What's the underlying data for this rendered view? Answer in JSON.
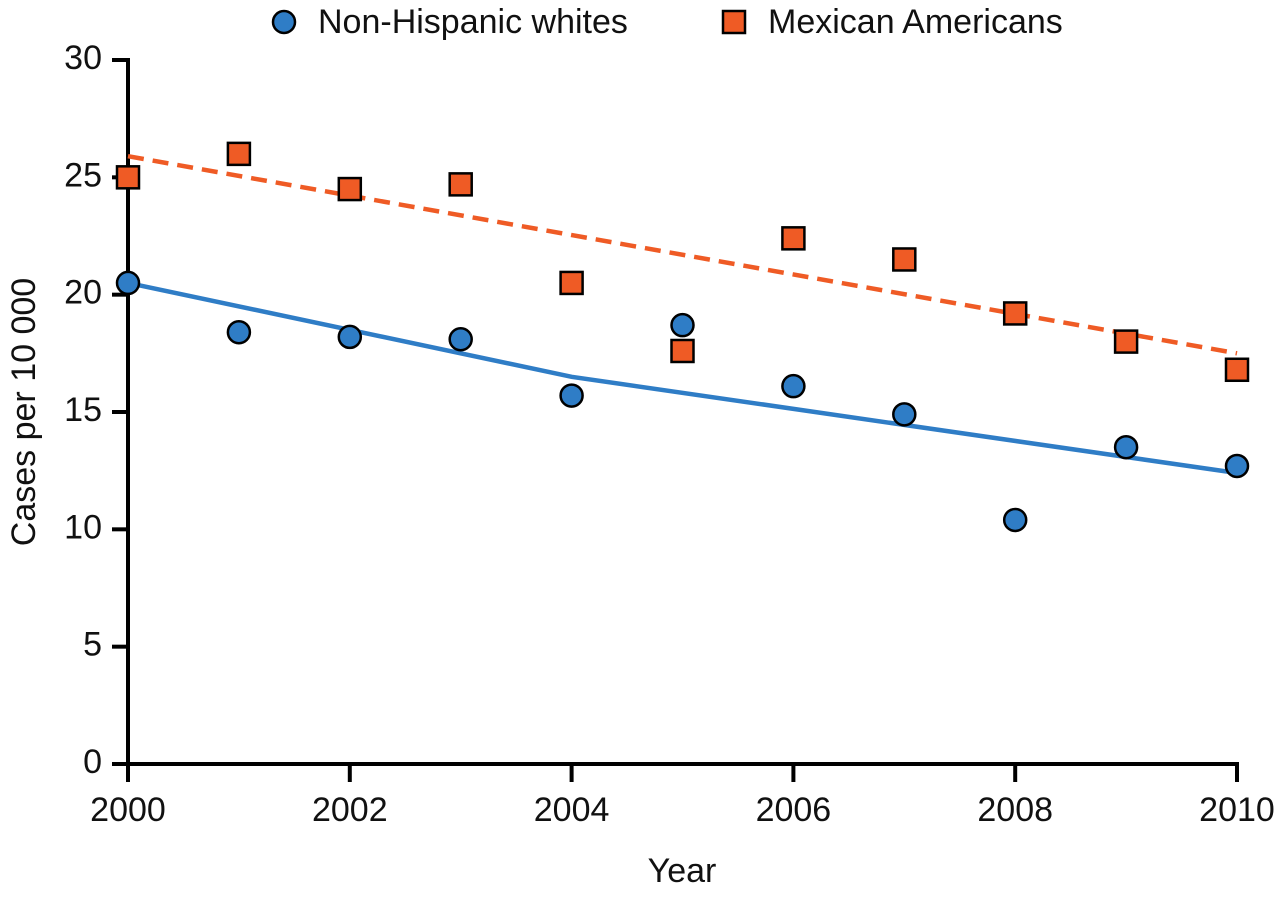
{
  "chart_data": {
    "type": "scatter",
    "x_label": "Year",
    "y_label": "Cases per 10 000",
    "x": [
      2000,
      2001,
      2002,
      2003,
      2004,
      2005,
      2006,
      2007,
      2008,
      2009,
      2010
    ],
    "series": [
      {
        "name": "Non-Hispanic whites",
        "color": "#2f7dc6",
        "marker": "circle",
        "values": [
          20.5,
          18.4,
          18.2,
          18.1,
          15.7,
          18.7,
          16.1,
          14.9,
          10.4,
          13.5,
          12.7
        ],
        "trend": {
          "x": [
            2000,
            2004,
            2010
          ],
          "values": [
            20.5,
            16.5,
            12.4
          ],
          "line_style": "solid"
        }
      },
      {
        "name": "Mexican Americans",
        "color": "#ef5b25",
        "marker": "square",
        "values": [
          25.0,
          26.0,
          24.5,
          24.7,
          20.5,
          17.6,
          22.4,
          21.5,
          19.2,
          18.0,
          16.8
        ],
        "trend": {
          "x": [
            2000,
            2010
          ],
          "values": [
            25.9,
            17.5
          ],
          "line_style": "dashed"
        }
      }
    ],
    "xlim": [
      2000,
      2010
    ],
    "xticks": [
      2000,
      2002,
      2004,
      2006,
      2008,
      2010
    ],
    "ylim": [
      0,
      30
    ],
    "yticks": [
      0,
      5,
      10,
      15,
      20,
      25,
      30
    ],
    "legend_position": "top",
    "grid": false
  }
}
